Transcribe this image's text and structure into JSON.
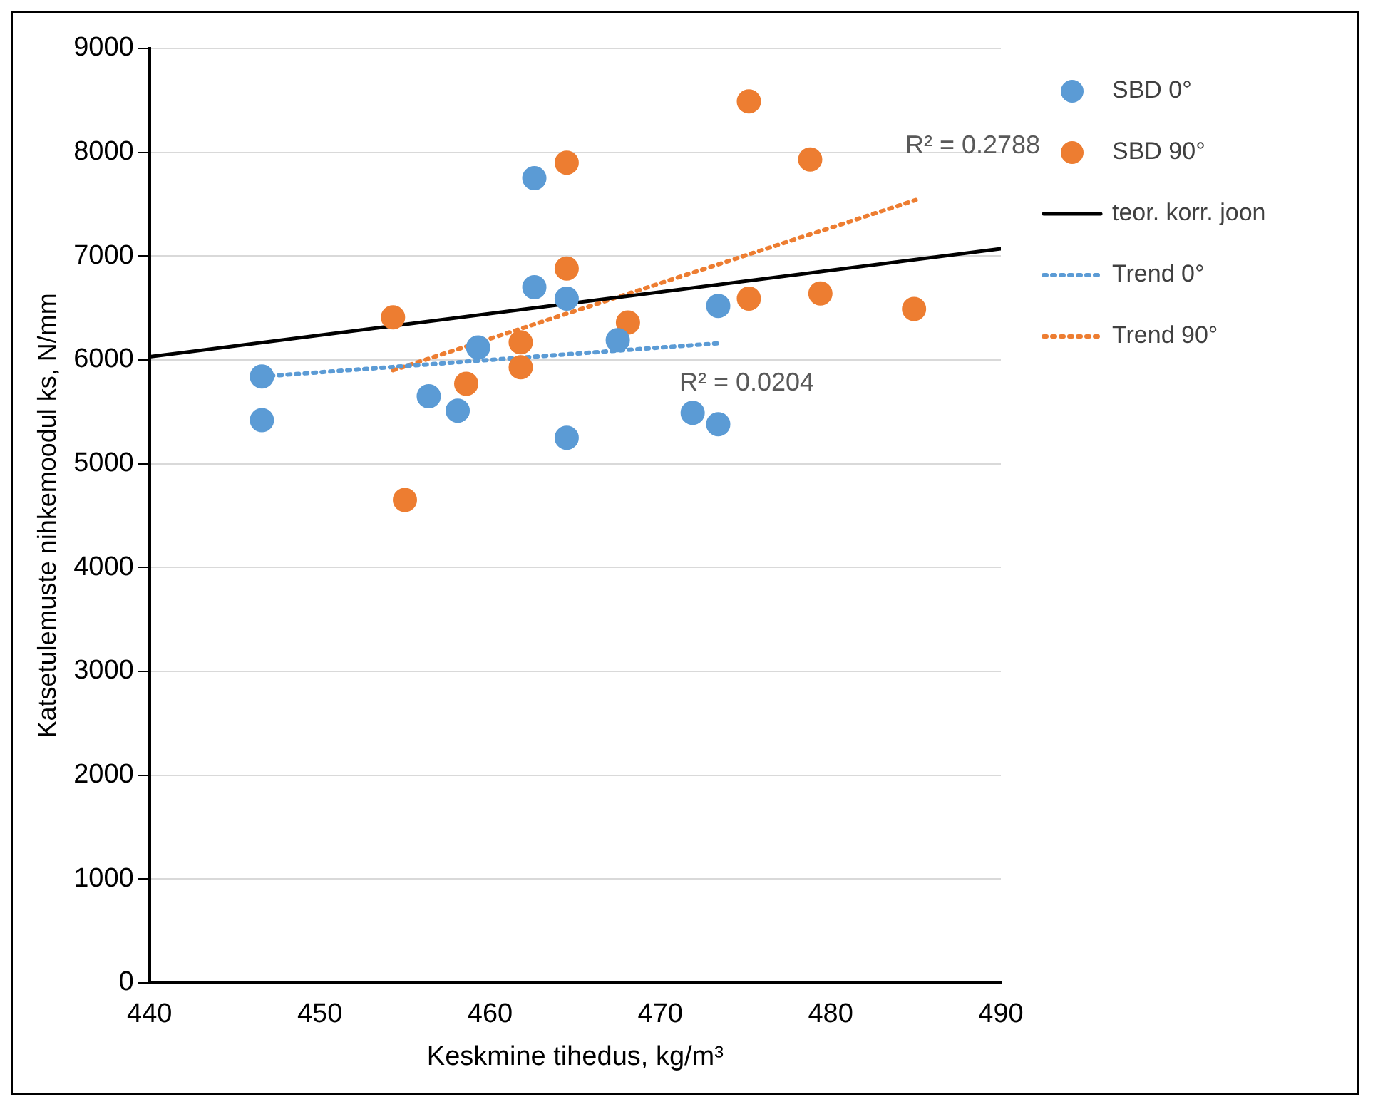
{
  "chart_data": {
    "type": "scatter",
    "xlabel": "Keskmine tihedus, kg/m³",
    "ylabel": "Katsetulemuste nihkemoodul ks, N/mm",
    "xlim": [
      440,
      490
    ],
    "xticks": [
      440,
      450,
      460,
      470,
      480,
      490
    ],
    "ylim": [
      0,
      9000
    ],
    "yticks": [
      0,
      1000,
      2000,
      3000,
      4000,
      5000,
      6000,
      7000,
      8000,
      9000
    ],
    "grid": "y",
    "legend": "right",
    "series": [
      {
        "name": "SBD 0°",
        "marker": "circle",
        "color": "#5b9bd5",
        "x": [
          446.6,
          446.6,
          456.4,
          458.1,
          459.3,
          462.6,
          462.6,
          464.5,
          464.5,
          467.5,
          471.9,
          473.4,
          473.4
        ],
        "values": [
          5420,
          5840,
          5650,
          5510,
          6120,
          7750,
          6700,
          6590,
          5250,
          6190,
          5490,
          5380,
          6520
        ]
      },
      {
        "name": "SBD 90°",
        "marker": "circle",
        "color": "#ed7d31",
        "x": [
          475.2,
          464.5,
          478.8,
          464.5,
          454.3,
          468.1,
          475.2,
          479.4,
          484.9,
          461.8,
          461.8,
          458.6,
          455.0
        ],
        "values": [
          8490,
          7900,
          7930,
          6880,
          6410,
          6360,
          6590,
          6640,
          6490,
          6170,
          5930,
          5770,
          4650
        ]
      },
      {
        "name": "teor. korr. joon",
        "type": "line",
        "color": "#000000",
        "line_style": "solid",
        "x": [
          440,
          490
        ],
        "values": [
          6030,
          7070
        ]
      },
      {
        "name": "Trend 0°",
        "type": "line",
        "color": "#5b9bd5",
        "line_style": "dotted",
        "x": [
          446.6,
          473.4
        ],
        "values": [
          5840,
          6160
        ]
      },
      {
        "name": "Trend 90°",
        "type": "line",
        "color": "#ed7d31",
        "line_style": "dotted",
        "x": [
          454.3,
          485.0
        ],
        "values": [
          5900,
          7540
        ]
      }
    ],
    "annotations": [
      "R² = 0.0204",
      "R² = 0.2788"
    ]
  }
}
